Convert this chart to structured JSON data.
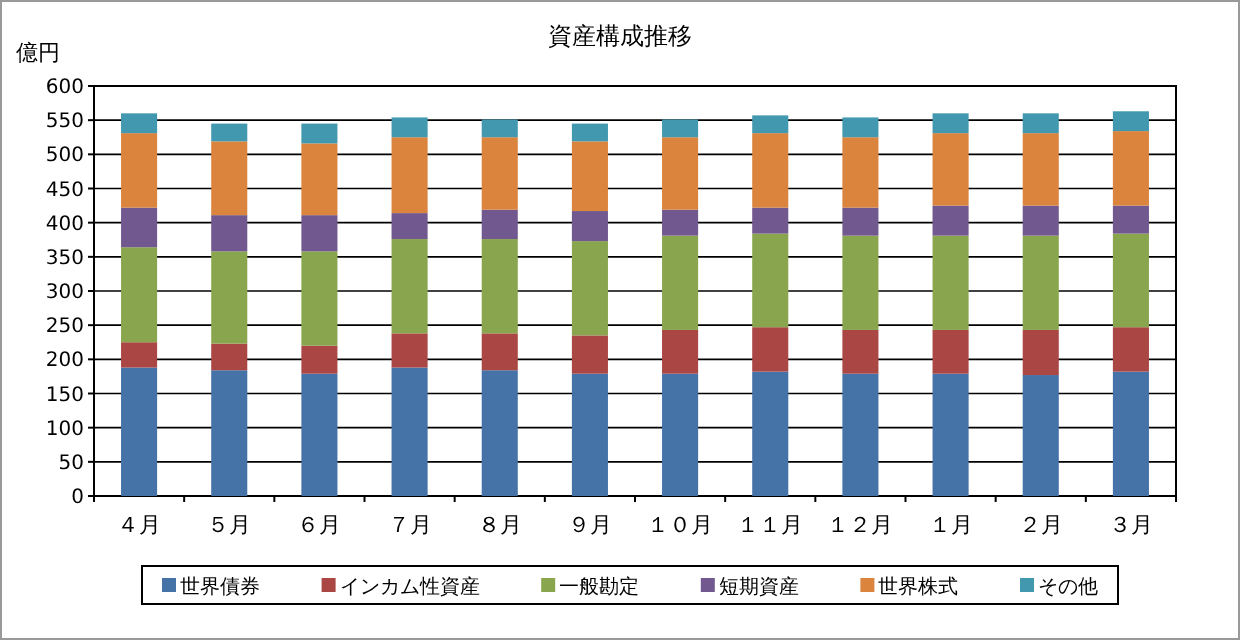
{
  "chart_data": {
    "type": "bar",
    "title": "資産構成推移",
    "ylabel": "億円",
    "stacked": true,
    "categories": [
      "４月",
      "５月",
      "６月",
      "７月",
      "８月",
      "９月",
      "１０月",
      "１１月",
      "１２月",
      "１月",
      "２月",
      "３月"
    ],
    "series": [
      {
        "name": "世界債券",
        "color": "#4572a7",
        "values": [
          188,
          184,
          179,
          188,
          184,
          179,
          179,
          182,
          179,
          179,
          177,
          182
        ]
      },
      {
        "name": "インカム性資産",
        "color": "#aa4643",
        "values": [
          37,
          39,
          41,
          50,
          54,
          56,
          64,
          65,
          64,
          64,
          66,
          65
        ]
      },
      {
        "name": "一般勘定",
        "color": "#89a54e",
        "values": [
          139,
          135,
          138,
          138,
          138,
          138,
          138,
          137,
          138,
          138,
          138,
          137
        ]
      },
      {
        "name": "短期資産",
        "color": "#71588f",
        "values": [
          58,
          53,
          53,
          38,
          43,
          44,
          38,
          38,
          41,
          44,
          44,
          41
        ]
      },
      {
        "name": "世界株式",
        "color": "#db843d",
        "values": [
          109,
          108,
          105,
          111,
          106,
          102,
          106,
          109,
          103,
          106,
          106,
          109
        ]
      },
      {
        "name": "その他",
        "color": "#4198af",
        "values": [
          29,
          26,
          29,
          29,
          26,
          26,
          26,
          26,
          29,
          29,
          29,
          29
        ]
      }
    ],
    "ylim": [
      0,
      600
    ],
    "yticks": [
      0,
      50,
      100,
      150,
      200,
      250,
      300,
      350,
      400,
      450,
      500,
      550,
      600
    ],
    "grid": "y",
    "legend": "bottom"
  }
}
